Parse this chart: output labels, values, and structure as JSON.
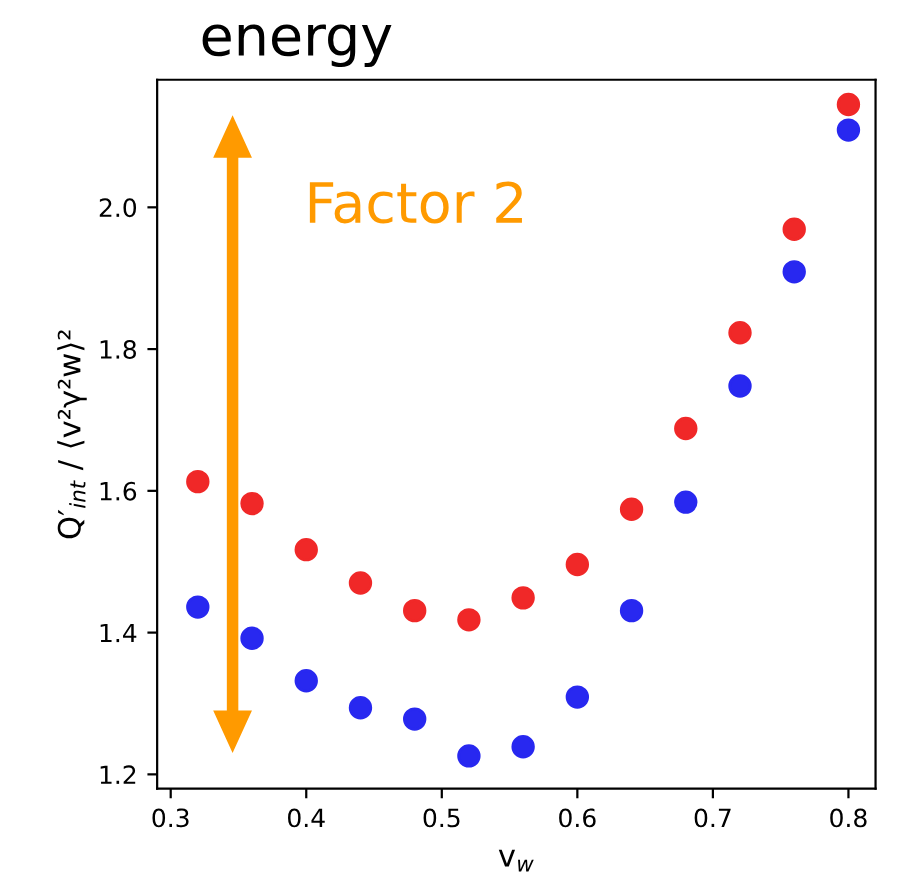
{
  "chart_data": {
    "type": "scatter",
    "xlabel": "v$_{w}$",
    "ylabel": "Q′$_{int}$ / ⟨v²γ²w⟩²",
    "x": [
      0.32,
      0.36,
      0.4,
      0.44,
      0.48,
      0.52,
      0.56,
      0.6,
      0.64,
      0.68,
      0.72,
      0.76,
      0.8
    ],
    "series": [
      {
        "color": "#f02828",
        "values": [
          1.613,
          1.582,
          1.517,
          1.47,
          1.431,
          1.418,
          1.449,
          1.496,
          1.574,
          1.688,
          1.823,
          1.969,
          2.145
        ]
      },
      {
        "color": "#2828f0",
        "values": [
          1.436,
          1.392,
          1.332,
          1.294,
          1.278,
          1.226,
          1.239,
          1.309,
          1.431,
          1.584,
          1.748,
          1.909,
          2.109
        ]
      }
    ],
    "xlim": [
      0.29,
      0.82
    ],
    "ylim": [
      1.18,
      2.18
    ],
    "xticks": [
      0.3,
      0.4,
      0.5,
      0.6,
      0.7,
      0.8
    ],
    "yticks": [
      1.2,
      1.4,
      1.6,
      1.8,
      {
        "value": 2.0,
        "label": "2.0"
      }
    ],
    "grid": false,
    "marker": "circle",
    "annotations": [
      "energy",
      "Factor 2"
    ]
  }
}
